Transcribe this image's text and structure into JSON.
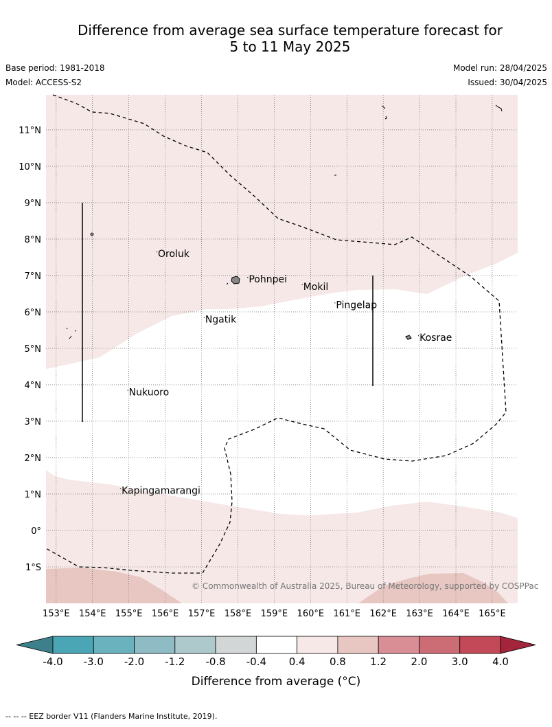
{
  "title": {
    "line1": "Difference from average sea surface temperature forecast for",
    "line2": "5 to 11 May 2025"
  },
  "meta": {
    "base_period": "Base period: 1981-2018",
    "model": "Model: ACCESS-S2",
    "model_run": "Model run: 28/04/2025",
    "issued": "Issued: 30/04/2025"
  },
  "map": {
    "lon_ticks": [
      "153°E",
      "154°E",
      "155°E",
      "156°E",
      "157°E",
      "158°E",
      "159°E",
      "160°E",
      "161°E",
      "162°E",
      "163°E",
      "164°E",
      "165°E"
    ],
    "lat_ticks": [
      "11°N",
      "10°N",
      "9°N",
      "8°N",
      "7°N",
      "6°N",
      "5°N",
      "4°N",
      "3°N",
      "2°N",
      "1°N",
      "0°",
      "1°S"
    ],
    "places": [
      {
        "name": "Oroluk",
        "lon": 155.8,
        "lat": 7.6
      },
      {
        "name": "Pohnpei",
        "lon": 158.3,
        "lat": 6.9
      },
      {
        "name": "Mokil",
        "lon": 159.8,
        "lat": 6.7
      },
      {
        "name": "Pingelap",
        "lon": 160.7,
        "lat": 6.2
      },
      {
        "name": "Ngatik",
        "lon": 157.1,
        "lat": 5.8
      },
      {
        "name": "Kosrae",
        "lon": 163.0,
        "lat": 5.3
      },
      {
        "name": "Nukuoro",
        "lon": 155.0,
        "lat": 3.8
      },
      {
        "name": "Kapingamarangi",
        "lon": 154.8,
        "lat": 1.1
      }
    ],
    "copyright": "© Commonwealth of Australia 2025, Bureau of Meteorology, supported by COSPPac",
    "colors": {
      "band_0_4_to_0_8": "#f5e8e7",
      "band_0_8_to_1_2": "#e8c7c3",
      "eez_line": "#000000"
    }
  },
  "colorbar": {
    "ticks": [
      "-4.0",
      "-3.0",
      "-2.0",
      "-1.2",
      "-0.8",
      "-0.4",
      "0.4",
      "0.8",
      "1.2",
      "2.0",
      "3.0",
      "4.0"
    ],
    "colors": [
      "#3d7f8b",
      "#4aa5b5",
      "#6bb2bf",
      "#8fbbc4",
      "#adc9cc",
      "#d3d6d6",
      "#ffffff",
      "#f5e8e7",
      "#e8c7c3",
      "#d98e95",
      "#cc6c75",
      "#c34958",
      "#a3253b"
    ],
    "label": "Difference from average (°C)"
  },
  "footer": "--  --  -- EEZ border V11 (Flanders Marine Institute, 2019)."
}
